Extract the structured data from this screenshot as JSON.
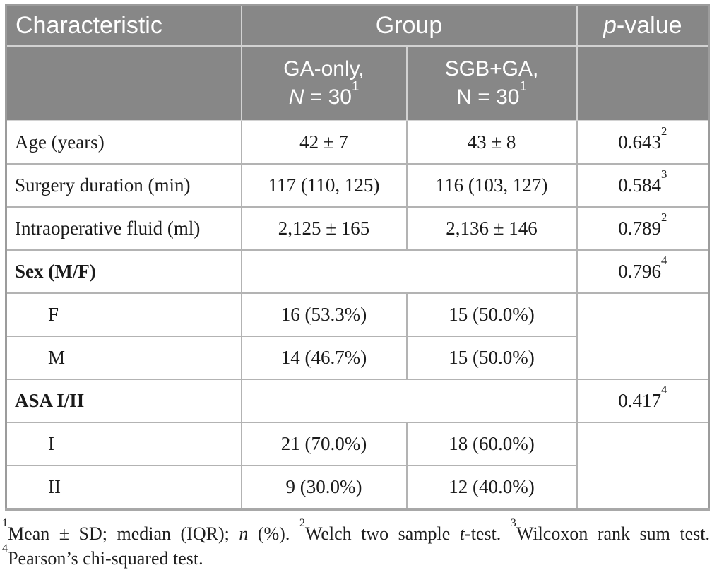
{
  "colors": {
    "header_bg": "#878787",
    "header_text": "#ffffff",
    "header_divider": "#d2d2d2",
    "body_text": "#1a1a1a",
    "row_divider": "#b3b3b3",
    "outer_border": "#9c9c9c"
  },
  "header": {
    "col1": "Characteristic",
    "group": "Group",
    "p_prefix": "p",
    "p_suffix": "-value",
    "subcols": {
      "ga": {
        "name": "GA-only,",
        "n_label": "N",
        "n_value": " = 30",
        "footnote_ref": "1"
      },
      "sgb": {
        "name": "SGB+GA,",
        "n_label": "N",
        "n_value": " = 30",
        "footnote_ref": "1"
      }
    }
  },
  "rows": [
    {
      "label": "Age (years)",
      "ga": "42 ± 7",
      "sgb": "43 ± 8",
      "p": "0.643",
      "p_ref": "2"
    },
    {
      "label": "Surgery duration (min)",
      "ga": "117 (110, 125)",
      "sgb": "116 (103, 127)",
      "p": "0.584",
      "p_ref": "3"
    },
    {
      "label": "Intraoperative fluid (ml)",
      "ga": "2,125 ± 165",
      "sgb": "2,136 ± 146",
      "p": "0.789",
      "p_ref": "2"
    },
    {
      "label": "Sex (M/F)",
      "ga": "",
      "sgb": "",
      "p": "0.796",
      "p_ref": "4"
    },
    {
      "label": "F",
      "ga": "16 (53.3%)",
      "sgb": "15 (50.0%)",
      "p": ""
    },
    {
      "label": "M",
      "ga": "14 (46.7%)",
      "sgb": "15 (50.0%)",
      "p": ""
    },
    {
      "label": "ASA I/II",
      "ga": "",
      "sgb": "",
      "p": "0.417",
      "p_ref": "4"
    },
    {
      "label": "I",
      "ga": "21 (70.0%)",
      "sgb": "18 (60.0%)",
      "p": ""
    },
    {
      "label": "II",
      "ga": "9 (30.0%)",
      "sgb": "12 (40.0%)",
      "p": ""
    }
  ],
  "footnotes": {
    "line1": {
      "ref1": "1",
      "text1": "Mean ± SD; median (IQR); ",
      "italic1": "n",
      "text2": " (%). ",
      "ref2": "2",
      "text3": "Welch two sample ",
      "italic2": "t",
      "text4": "-test. ",
      "ref3": "3",
      "text5": "Wilcoxon rank sum test."
    },
    "line2": {
      "ref4": "4",
      "text": "Pearson’s chi-squared test."
    }
  }
}
